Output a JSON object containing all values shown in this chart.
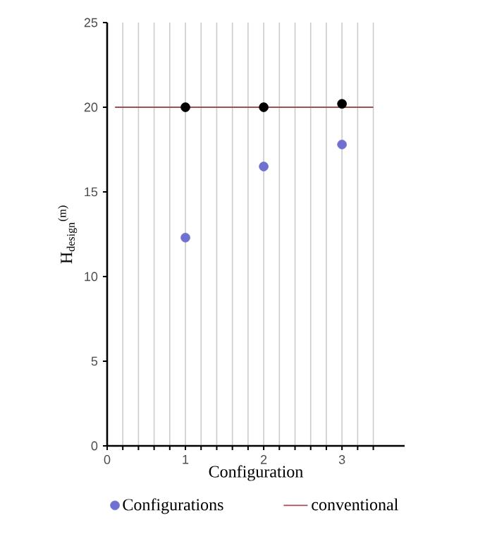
{
  "chart_data": {
    "type": "scatter",
    "xlabel": "Configuration",
    "ylabel": "H$_{design}$$^{(m)}$",
    "xlim": [
      0,
      3.8
    ],
    "ylim": [
      0,
      25
    ],
    "xticks": [
      0,
      {
        "value": 0.2,
        "label": null
      },
      {
        "value": 0.4,
        "label": null
      },
      {
        "value": 0.6,
        "label": null
      },
      {
        "value": 0.8,
        "label": null
      },
      1,
      {
        "value": 1.2,
        "label": null
      },
      {
        "value": 1.4,
        "label": null
      },
      {
        "value": 1.6,
        "label": null
      },
      {
        "value": 1.8,
        "label": null
      },
      2,
      {
        "value": 2.2,
        "label": null
      },
      {
        "value": 2.4,
        "label": null
      },
      {
        "value": 2.6,
        "label": null
      },
      {
        "value": 2.8,
        "label": null
      },
      3,
      {
        "value": 3.2,
        "label": null
      },
      {
        "value": 3.4,
        "label": null
      }
    ],
    "yticks": [
      0,
      5,
      10,
      15,
      20,
      25
    ],
    "grid": "x",
    "legend": "bottom",
    "series": [
      {
        "name": "Configurations",
        "color": "#7070d0",
        "marker": "circle",
        "x": [
          1,
          2,
          3
        ],
        "values": [
          12.3,
          16.5,
          17.8
        ]
      },
      {
        "color": "#000000",
        "marker": "circle",
        "x": [
          1,
          2,
          3
        ],
        "values": [
          20,
          20,
          20.2
        ]
      },
      {
        "name": "conventional",
        "type": "line",
        "marker": "none",
        "color": "#a05050",
        "x": [
          0.1,
          3.4
        ],
        "values": [
          20,
          20
        ]
      }
    ]
  }
}
